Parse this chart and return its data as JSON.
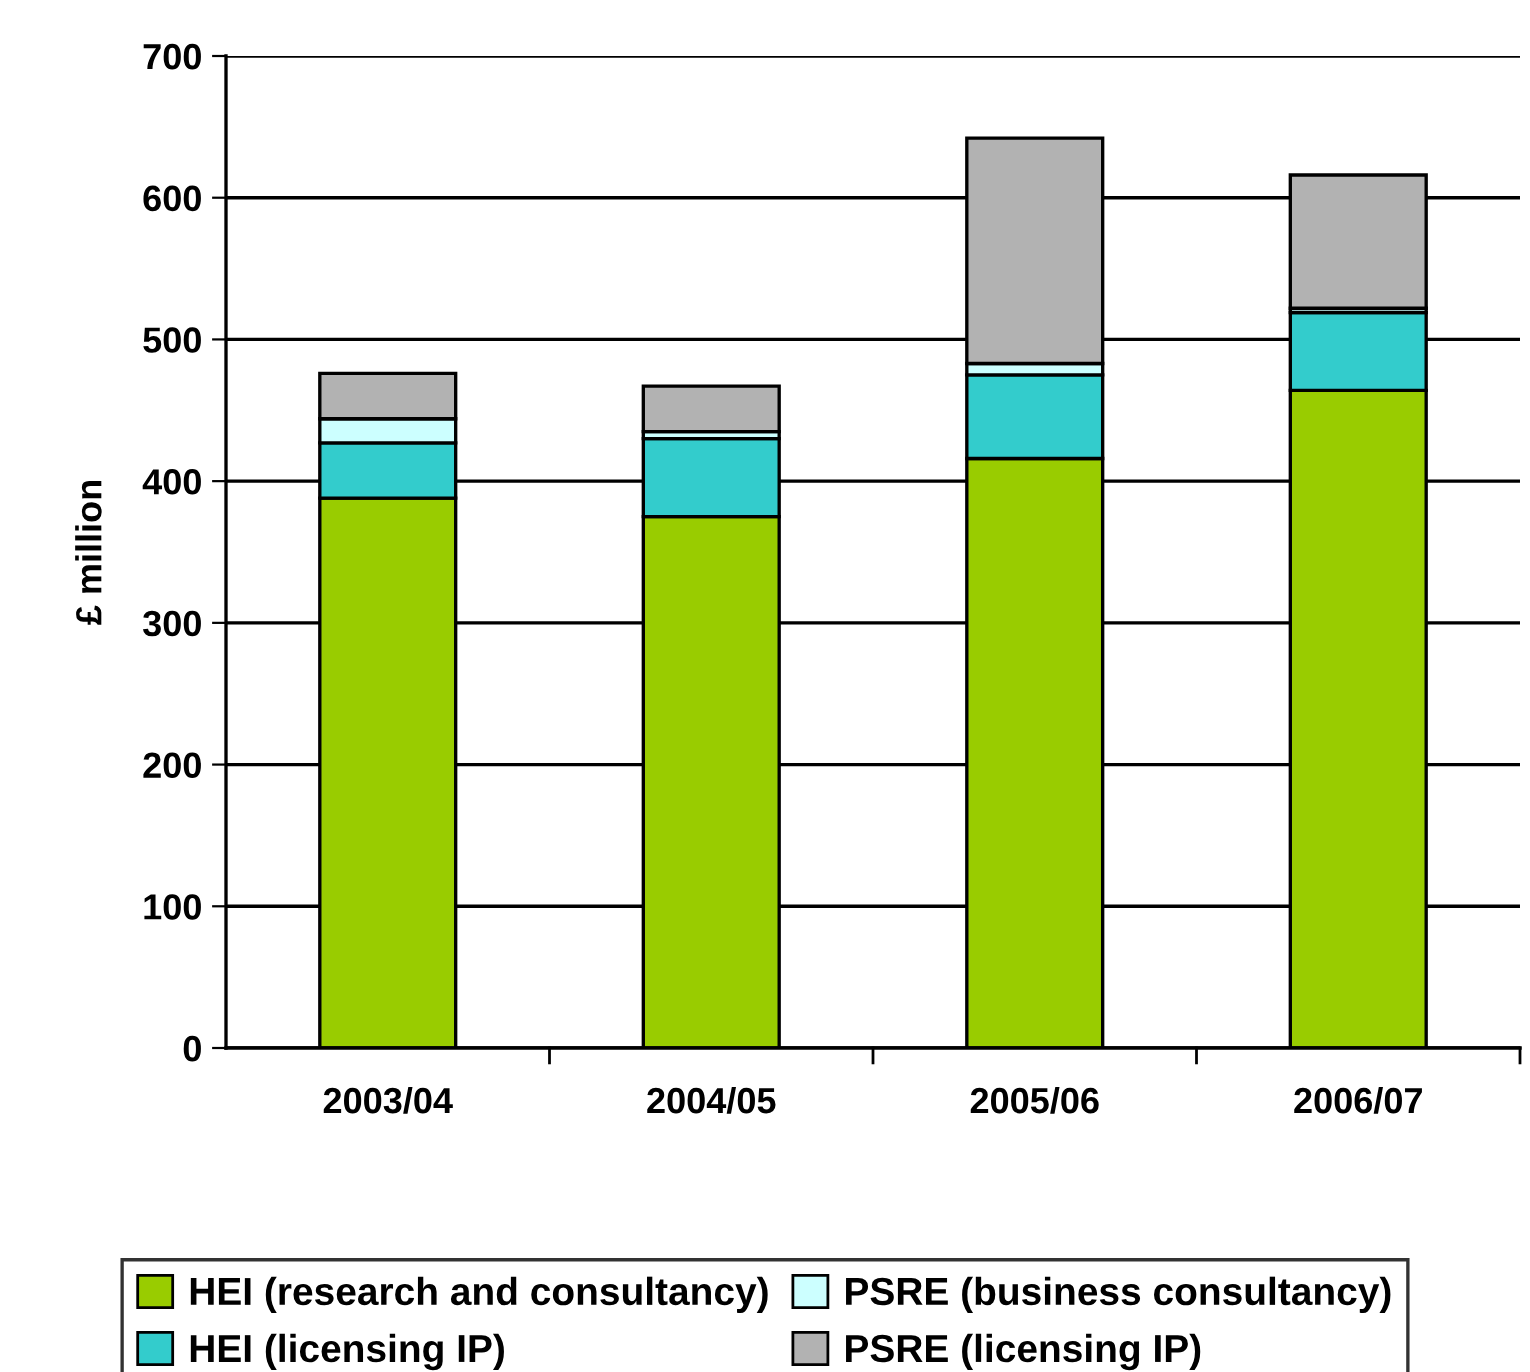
{
  "chart_data": {
    "type": "bar",
    "ylabel": "£ million",
    "stacked": true,
    "categories": [
      "2003/04",
      "2004/05",
      "2005/06",
      "2006/07"
    ],
    "series": [
      {
        "name": "HEI (research and consultancy)",
        "color": "#99cc00",
        "values": [
          388,
          375,
          416,
          464
        ]
      },
      {
        "name": "HEI (licensing IP)",
        "color": "#33cccc",
        "values": [
          39,
          55,
          59,
          55
        ]
      },
      {
        "name": "PSRE (business consultancy)",
        "color": "#ccffff",
        "values": [
          17,
          5,
          8,
          3
        ]
      },
      {
        "name": "PSRE (licensing IP)",
        "color": "#b2b2b2",
        "values": [
          32,
          32,
          159,
          94
        ]
      }
    ],
    "ylim": [
      0,
      700
    ],
    "yticks": [
      0,
      100,
      200,
      300,
      400,
      500,
      600,
      700
    ],
    "grid": "y",
    "legend": "bottom"
  }
}
